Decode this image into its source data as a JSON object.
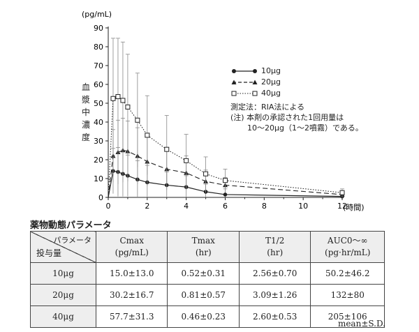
{
  "chart_data": {
    "type": "line",
    "y_unit": "(pg/mL)",
    "ylabel": "血漿中濃度",
    "x_unit": "(時間)",
    "xlim": [
      0,
      12
    ],
    "ylim": [
      0,
      90
    ],
    "xticks": [
      0,
      2,
      4,
      6,
      8,
      10,
      12
    ],
    "yticks": [
      0,
      10,
      20,
      30,
      40,
      50,
      60,
      70,
      80,
      90
    ],
    "grid": false,
    "legend_position": "top-right",
    "series": [
      {
        "name": "10μg",
        "marker": "filled-circle",
        "line": "solid",
        "x": [
          0,
          0.25,
          0.5,
          0.75,
          1,
          1.5,
          2,
          3,
          4,
          5,
          6,
          12
        ],
        "y": [
          0,
          14,
          13.5,
          12.5,
          11.5,
          9.5,
          8,
          6.5,
          5.5,
          3,
          1.5,
          0.5
        ],
        "sd": [
          0,
          12,
          13,
          12,
          11,
          10,
          9,
          7,
          6,
          4,
          3,
          1
        ]
      },
      {
        "name": "20μg",
        "marker": "filled-triangle",
        "line": "dashed",
        "x": [
          0,
          0.25,
          0.5,
          0.75,
          1,
          1.5,
          2,
          3,
          4,
          5,
          6,
          12
        ],
        "y": [
          0,
          22,
          24,
          25,
          24.5,
          22,
          19,
          15,
          13,
          8.5,
          6.5,
          1.5
        ],
        "sd": [
          0,
          14,
          17,
          17,
          16,
          15,
          13,
          11,
          9,
          6,
          4,
          1.5
        ]
      },
      {
        "name": "40μg",
        "marker": "open-square",
        "line": "dotted",
        "x": [
          0,
          0.25,
          0.5,
          0.75,
          1,
          1.5,
          2,
          3,
          4,
          5,
          6,
          12
        ],
        "y": [
          0,
          52.5,
          53.5,
          51.5,
          48,
          41,
          33,
          25.5,
          19.5,
          12.5,
          9,
          2.5
        ],
        "sd": [
          0,
          32,
          31,
          31,
          28,
          25,
          21,
          18,
          14,
          9,
          6,
          2
        ]
      }
    ],
    "notes": [
      "測定法：RIA法による",
      "(注) 本剤の承認された1回用量は",
      "10〜20μg（1〜2噴霧）である。"
    ]
  },
  "table": {
    "title": "薬物動態パラメータ",
    "corner_top": "パラメータ",
    "corner_bottom": "投与量",
    "headers": [
      {
        "name": "Cmax",
        "unit": "(pg/mL)"
      },
      {
        "name": "Tmax",
        "unit": "(hr)"
      },
      {
        "name": "T1/2",
        "unit": "(hr)"
      },
      {
        "name": "AUC0〜∞",
        "unit": "(pg·hr/mL)"
      }
    ],
    "rows": [
      {
        "dose": "10μg",
        "cmax": "15.0±13.0",
        "tmax": "0.52±0.31",
        "t_half": "2.56±0.70",
        "auc": "50.2±46.2"
      },
      {
        "dose": "20μg",
        "cmax": "30.2±16.7",
        "tmax": "0.81±0.57",
        "t_half": "3.09±1.26",
        "auc": "132±80"
      },
      {
        "dose": "40μg",
        "cmax": "57.7±31.3",
        "tmax": "0.46±0.23",
        "t_half": "2.60±0.53",
        "auc": "205±106"
      }
    ],
    "footnote": "mean±S.D."
  }
}
